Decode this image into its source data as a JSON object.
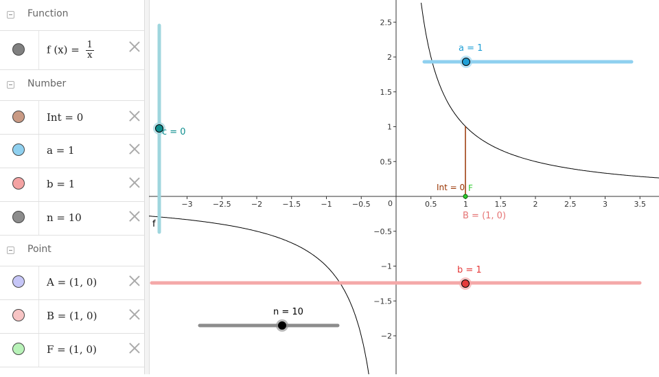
{
  "algebra": {
    "groups": [
      {
        "label": "Function"
      },
      {
        "label": "Number"
      },
      {
        "label": "Point"
      }
    ],
    "function_row": {
      "lhs": "f (x) =",
      "num": "1",
      "den": "x",
      "color": "#808080"
    },
    "number_rows": [
      {
        "text": "Int = 0",
        "color": "#c99a84"
      },
      {
        "text": "a = 1",
        "color": "#8fd0ef"
      },
      {
        "text": "b = 1",
        "color": "#f4a3a3"
      },
      {
        "text": "n = 10",
        "color": "#8c8c8c"
      }
    ],
    "point_rows": [
      {
        "text": "A = (1, 0)",
        "color": "#c6c6f7"
      },
      {
        "text": "B = (1, 0)",
        "color": "#f7c4c4"
      },
      {
        "text": "F = (1, 0)",
        "color": "#b8f2b8"
      }
    ]
  },
  "graphics": {
    "x_ticks": [
      "−3",
      "−2.5",
      "−2",
      "−1.5",
      "−1",
      "−0.5",
      "0.5",
      "1",
      "1.5",
      "2",
      "2.5",
      "3",
      "3.5"
    ],
    "y_ticks": [
      "2.5",
      "2",
      "1.5",
      "1",
      "0.5",
      "−0.5",
      "−1",
      "−1.5",
      "−2"
    ],
    "origin_label": "0",
    "labels": {
      "a_slider": "a = 1",
      "b_slider": "b = 1",
      "c_slider": "c = 0",
      "n_slider": "n = 10",
      "int_label": "Int = 0",
      "f_point": "F",
      "b_point": "B = (1, 0)",
      "f_curve": "f"
    },
    "colors": {
      "a": "#1f9fd6",
      "b": "#e53b3b",
      "c": "#0e8e8e",
      "int": "#993300",
      "f_point": "#33cc33",
      "curve": "#000000"
    }
  }
}
